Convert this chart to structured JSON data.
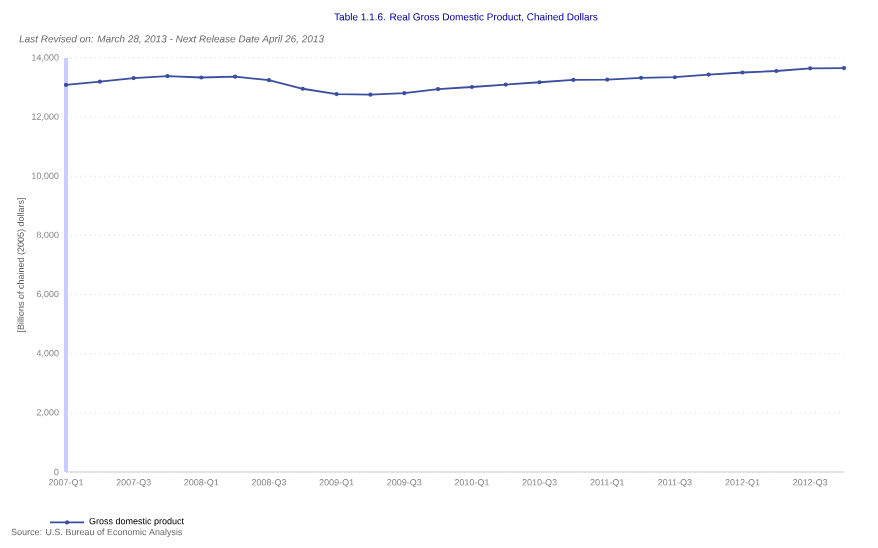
{
  "chart_data": {
    "type": "line",
    "title": "Table 1.1.6. Real Gross Domestic Product, Chained Dollars",
    "subtitle": "Last Revised on: March 28, 2013 - Next Release Date April 26, 2013",
    "ylabel": "[Billions of chained (2005) dollars]",
    "annotations": [
      "Source: U.S. Bureau of Economic Analysis"
    ],
    "categories": [
      "2007-Q1",
      null,
      "2007-Q3",
      null,
      "2008-Q1",
      null,
      "2008-Q3",
      null,
      "2009-Q1",
      null,
      "2009-Q3",
      null,
      "2010-Q1",
      null,
      "2010-Q3",
      null,
      "2011-Q1",
      null,
      "2011-Q3",
      null,
      "2012-Q1",
      null,
      "2012-Q3",
      null
    ],
    "series": [
      {
        "name": "Gross domestic product",
        "color": "#3a4fa0",
        "values": [
          13090,
          13200,
          13320,
          13390,
          13340,
          13370,
          13250,
          12960,
          12780,
          12760,
          12810,
          12950,
          13020,
          13100,
          13180,
          13260,
          13270,
          13330,
          13350,
          13440,
          13510,
          13560,
          13650,
          13660
        ]
      }
    ],
    "ylim": [
      0,
      14000
    ],
    "yticks": [
      {
        "value": 0,
        "label": "0"
      },
      {
        "value": 2000,
        "label": "2,000"
      },
      {
        "value": 4000,
        "label": "4,000"
      },
      {
        "value": 6000,
        "label": "6,000"
      },
      {
        "value": 8000,
        "label": "8,000"
      },
      {
        "value": 10000,
        "label": "10,000"
      },
      {
        "value": 12000,
        "label": "12,000"
      },
      {
        "value": 14000,
        "label": "14,000"
      }
    ],
    "grid": "y",
    "legend": "bottom left",
    "marker": "circle",
    "line_style": "solid"
  }
}
